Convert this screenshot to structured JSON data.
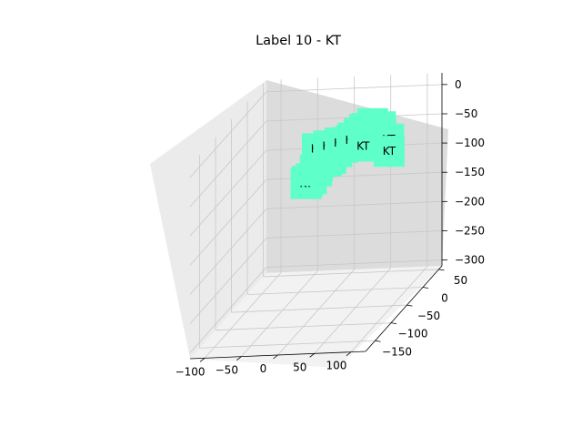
{
  "chart_data": {
    "type": "scatter",
    "projection": "3d",
    "title": "Label 10 - KT",
    "marker": "square",
    "marker_color": "#5effc8",
    "point_label": "KT",
    "grid": true,
    "x_axis": {
      "ticks": [
        -100,
        -50,
        0,
        50,
        100
      ],
      "tick_labels": [
        "−100",
        "−50",
        "0",
        "50",
        "100"
      ]
    },
    "y_axis": {
      "ticks": [
        -150,
        -100,
        -50,
        0,
        50
      ],
      "tick_labels": [
        "−150",
        "−100",
        "−50",
        "0",
        "50"
      ]
    },
    "z_axis": {
      "ticks": [
        -300,
        -250,
        -200,
        -150,
        -100,
        -50,
        0
      ],
      "tick_labels": [
        "−300",
        "−250",
        "−200",
        "−150",
        "−100",
        "−50",
        "0"
      ]
    },
    "points": [
      {
        "x": -40,
        "y": 30,
        "z": -120
      },
      {
        "x": -35,
        "y": 25,
        "z": -110
      },
      {
        "x": -30,
        "y": 20,
        "z": -100
      },
      {
        "x": -25,
        "y": 30,
        "z": -105
      },
      {
        "x": -20,
        "y": 15,
        "z": -90
      },
      {
        "x": -15,
        "y": 20,
        "z": -95
      },
      {
        "x": -10,
        "y": 10,
        "z": -85
      },
      {
        "x": -5,
        "y": 15,
        "z": -80
      },
      {
        "x": 0,
        "y": 5,
        "z": -75
      },
      {
        "x": 5,
        "y": 10,
        "z": -70
      },
      {
        "x": 10,
        "y": 0,
        "z": -65
      },
      {
        "x": 15,
        "y": 5,
        "z": -60
      },
      {
        "x": 20,
        "y": -5,
        "z": -55
      },
      {
        "x": 25,
        "y": 0,
        "z": -50
      },
      {
        "x": 30,
        "y": -10,
        "z": -45
      },
      {
        "x": 35,
        "y": -5,
        "z": -40
      },
      {
        "x": 40,
        "y": -15,
        "z": -35
      },
      {
        "x": 45,
        "y": -10,
        "z": -30
      },
      {
        "x": 50,
        "y": -20,
        "z": -25
      },
      {
        "x": 55,
        "y": -25,
        "z": -20
      },
      {
        "x": 60,
        "y": -20,
        "z": -15
      },
      {
        "x": 65,
        "y": -30,
        "z": -20
      },
      {
        "x": 70,
        "y": -35,
        "z": -25
      },
      {
        "x": 75,
        "y": -30,
        "z": -15
      },
      {
        "x": 80,
        "y": -40,
        "z": -20
      },
      {
        "x": 85,
        "y": -45,
        "z": -30
      },
      {
        "x": 90,
        "y": -40,
        "z": -35
      },
      {
        "x": -20,
        "y": -10,
        "z": -60
      },
      {
        "x": 0,
        "y": -20,
        "z": -50
      },
      {
        "x": 20,
        "y": -30,
        "z": -40
      },
      {
        "x": 40,
        "y": -40,
        "z": -30
      },
      {
        "x": 60,
        "y": -50,
        "z": -35
      },
      {
        "x": -50,
        "y": 40,
        "z": -140
      },
      {
        "x": -60,
        "y": 50,
        "z": -150
      },
      {
        "x": -55,
        "y": 35,
        "z": -145
      },
      {
        "x": -45,
        "y": 45,
        "z": -130
      },
      {
        "x": 100,
        "y": -60,
        "z": -40
      },
      {
        "x": 95,
        "y": -50,
        "z": -25
      }
    ]
  }
}
